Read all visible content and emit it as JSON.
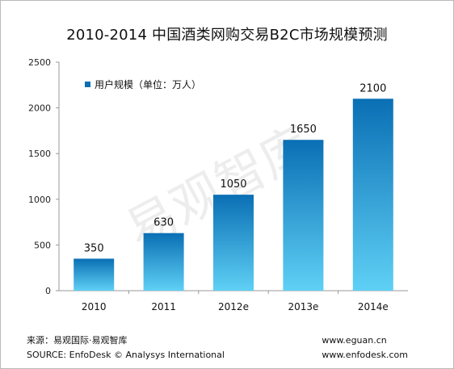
{
  "chart_data": {
    "type": "bar",
    "title": "2010-2014 中国酒类网购交易B2C市场规模预测",
    "categories": [
      "2010",
      "2011",
      "2012e",
      "2013e",
      "2014e"
    ],
    "series": [
      {
        "name": "用户规模（单位：万人）",
        "values": [
          350,
          630,
          1050,
          1650,
          2100
        ]
      }
    ],
    "y_ticks": [
      0,
      500,
      1000,
      1500,
      2000,
      2500
    ],
    "ylim": [
      0,
      2500
    ],
    "grid": false,
    "legend_position": "top-left",
    "colors": {
      "bar_top": "#0a6fb4",
      "bar_bottom": "#5fd0f5",
      "axis": "#999999"
    }
  },
  "watermark": "易观智库",
  "footer": {
    "source_cn": "来源：易观国际·易观智库",
    "source_en": "SOURCE:  EnfoDesk © Analysys International",
    "url1": "www.eguan.cn",
    "url2": "www.enfodesk.com"
  }
}
